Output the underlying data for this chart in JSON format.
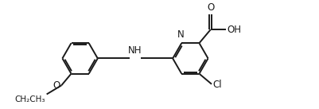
{
  "background": "#ffffff",
  "line_color": "#1a1a1a",
  "text_color": "#1a1a1a",
  "bond_width": 1.4,
  "font_size": 8.5,
  "fig_width": 4.01,
  "fig_height": 1.37,
  "dpi": 100,
  "xlim": [
    0.0,
    10.5
  ],
  "ylim": [
    0.0,
    3.6
  ]
}
